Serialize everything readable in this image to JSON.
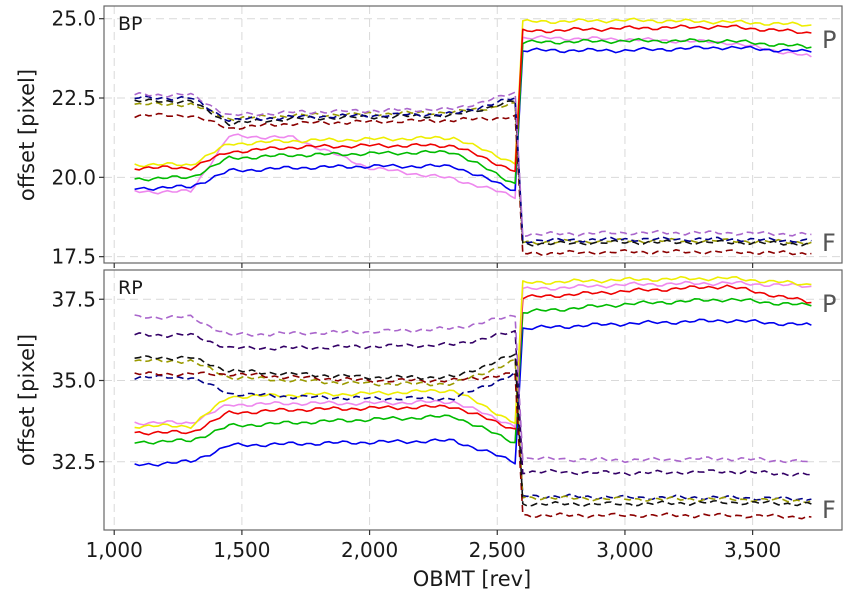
{
  "chart_data": [
    {
      "panel": "BP",
      "type": "line",
      "ylabel": "offset [pixel]",
      "xlabel": "OBMT [rev]",
      "xlim": [
        960,
        3850
      ],
      "ylim": [
        17.3,
        25.4
      ],
      "xticks": [
        1000,
        1500,
        2000,
        2500,
        3000,
        3500
      ],
      "yticks": [
        17.5,
        20.0,
        22.5,
        25.0
      ],
      "xtick_labels": [
        "1,000",
        "1,500",
        "2,000",
        "2,500",
        "3,000",
        "3,500"
      ],
      "ytick_labels": [
        "17.5",
        "20.0",
        "22.5",
        "25.0"
      ],
      "annotations": {
        "upper": "P",
        "lower": "F"
      },
      "series": [
        {
          "name": "violet-solid",
          "color": "#ee88ee",
          "dashed": false,
          "values": [
            19.55,
            19.55,
            21.3,
            21.25,
            20.3,
            19.95,
            19.4,
            24.4,
            24.35,
            24.25,
            23.8
          ]
        },
        {
          "name": "blue-solid",
          "color": "#0000ee",
          "dashed": false,
          "values": [
            19.65,
            19.7,
            20.2,
            20.3,
            20.35,
            20.35,
            19.6,
            24.0,
            24.0,
            24.1,
            23.95
          ]
        },
        {
          "name": "green-solid",
          "color": "#00bb00",
          "dashed": false,
          "values": [
            19.95,
            20.0,
            20.6,
            20.7,
            20.75,
            20.8,
            19.8,
            24.25,
            24.3,
            24.3,
            24.1
          ]
        },
        {
          "name": "yellow-solid",
          "color": "#eeee00",
          "dashed": false,
          "values": [
            20.4,
            20.4,
            21.05,
            21.15,
            21.2,
            21.25,
            20.45,
            24.9,
            24.95,
            24.9,
            24.8
          ]
        },
        {
          "name": "red-solid",
          "color": "#ee0000",
          "dashed": false,
          "values": [
            20.3,
            20.3,
            20.8,
            20.95,
            21.0,
            21.0,
            20.2,
            24.6,
            24.7,
            24.75,
            24.55
          ]
        },
        {
          "name": "darkred-dashed",
          "color": "#8b0000",
          "dashed": true,
          "values": [
            21.95,
            21.95,
            21.55,
            21.7,
            21.75,
            21.8,
            21.9,
            17.6,
            17.65,
            17.65,
            17.6
          ]
        },
        {
          "name": "olive-dashed",
          "color": "#9a9a00",
          "dashed": true,
          "values": [
            22.3,
            22.3,
            21.85,
            21.95,
            22.0,
            22.05,
            22.3,
            17.95,
            18.0,
            18.0,
            17.95
          ]
        },
        {
          "name": "black-dashed",
          "color": "#111111",
          "dashed": true,
          "values": [
            22.4,
            22.4,
            21.7,
            21.85,
            21.9,
            21.95,
            22.4,
            17.9,
            17.95,
            17.95,
            17.9
          ]
        },
        {
          "name": "navy-dashed",
          "color": "#000088",
          "dashed": true,
          "values": [
            22.5,
            22.5,
            21.8,
            21.9,
            21.95,
            22.0,
            22.5,
            18.0,
            18.05,
            18.05,
            18.0
          ]
        },
        {
          "name": "purple-dashed",
          "color": "#aa66cc",
          "dashed": true,
          "values": [
            22.6,
            22.6,
            21.95,
            22.05,
            22.1,
            22.15,
            22.65,
            18.2,
            18.25,
            18.25,
            18.2
          ]
        }
      ]
    },
    {
      "panel": "RP",
      "type": "line",
      "ylabel": "offset [pixel]",
      "xlabel": "OBMT [rev]",
      "xlim": [
        960,
        3850
      ],
      "ylim": [
        30.4,
        38.4
      ],
      "xticks": [
        1000,
        1500,
        2000,
        2500,
        3000,
        3500
      ],
      "yticks": [
        32.5,
        35.0,
        37.5
      ],
      "xtick_labels": [
        "1,000",
        "1,500",
        "2,000",
        "2,500",
        "3,000",
        "3,500"
      ],
      "ytick_labels": [
        "32.5",
        "35.0",
        "37.5"
      ],
      "annotations": {
        "upper": "P",
        "lower": "F"
      },
      "series": [
        {
          "name": "blue-solid",
          "color": "#0000ee",
          "dashed": false,
          "values": [
            32.4,
            32.5,
            33.0,
            33.05,
            33.1,
            33.15,
            32.5,
            36.6,
            36.75,
            36.85,
            36.7
          ]
        },
        {
          "name": "green-solid",
          "color": "#00bb00",
          "dashed": false,
          "values": [
            33.1,
            33.15,
            33.6,
            33.7,
            33.8,
            33.9,
            33.1,
            37.1,
            37.35,
            37.5,
            37.3
          ]
        },
        {
          "name": "red-solid",
          "color": "#ee0000",
          "dashed": false,
          "values": [
            33.4,
            33.4,
            34.0,
            34.1,
            34.15,
            34.2,
            33.5,
            37.55,
            37.75,
            37.9,
            37.4
          ]
        },
        {
          "name": "violet-solid",
          "color": "#ee88ee",
          "dashed": false,
          "values": [
            33.7,
            33.7,
            34.25,
            34.3,
            34.3,
            34.35,
            33.6,
            37.8,
            37.95,
            38.0,
            37.9
          ]
        },
        {
          "name": "yellow-solid",
          "color": "#eeee00",
          "dashed": false,
          "values": [
            33.6,
            33.6,
            34.5,
            34.55,
            34.6,
            34.7,
            33.7,
            38.0,
            38.1,
            38.15,
            37.95
          ]
        },
        {
          "name": "navy-dashed",
          "color": "#000088",
          "dashed": true,
          "values": [
            35.1,
            35.1,
            34.6,
            34.5,
            34.45,
            34.45,
            35.2,
            31.45,
            31.4,
            31.4,
            31.35
          ]
        },
        {
          "name": "olive-dashed",
          "color": "#9a9a00",
          "dashed": true,
          "values": [
            35.6,
            35.6,
            35.1,
            35.0,
            34.9,
            34.9,
            35.6,
            31.4,
            31.35,
            31.35,
            31.3
          ]
        },
        {
          "name": "darkred-dashed",
          "color": "#8b0000",
          "dashed": true,
          "values": [
            35.2,
            35.2,
            35.2,
            35.1,
            35.0,
            35.0,
            35.2,
            30.85,
            30.85,
            30.85,
            30.8
          ]
        },
        {
          "name": "black-dashed",
          "color": "#111111",
          "dashed": true,
          "values": [
            35.7,
            35.7,
            35.3,
            35.2,
            35.1,
            35.1,
            35.8,
            31.2,
            31.2,
            31.25,
            31.2
          ]
        },
        {
          "name": "indigo-dashed",
          "color": "#330066",
          "dashed": true,
          "values": [
            36.4,
            36.4,
            36.0,
            36.0,
            36.05,
            36.1,
            36.5,
            32.2,
            32.15,
            32.2,
            32.1
          ]
        },
        {
          "name": "purple-dashed",
          "color": "#aa66cc",
          "dashed": true,
          "values": [
            36.95,
            36.95,
            36.4,
            36.45,
            36.5,
            36.6,
            37.0,
            32.6,
            32.55,
            32.6,
            32.5
          ]
        }
      ],
      "x_breakpoints": [
        1080,
        1300,
        1450,
        1700,
        2000,
        2330,
        2570,
        2600,
        3000,
        3400,
        3730
      ]
    }
  ]
}
